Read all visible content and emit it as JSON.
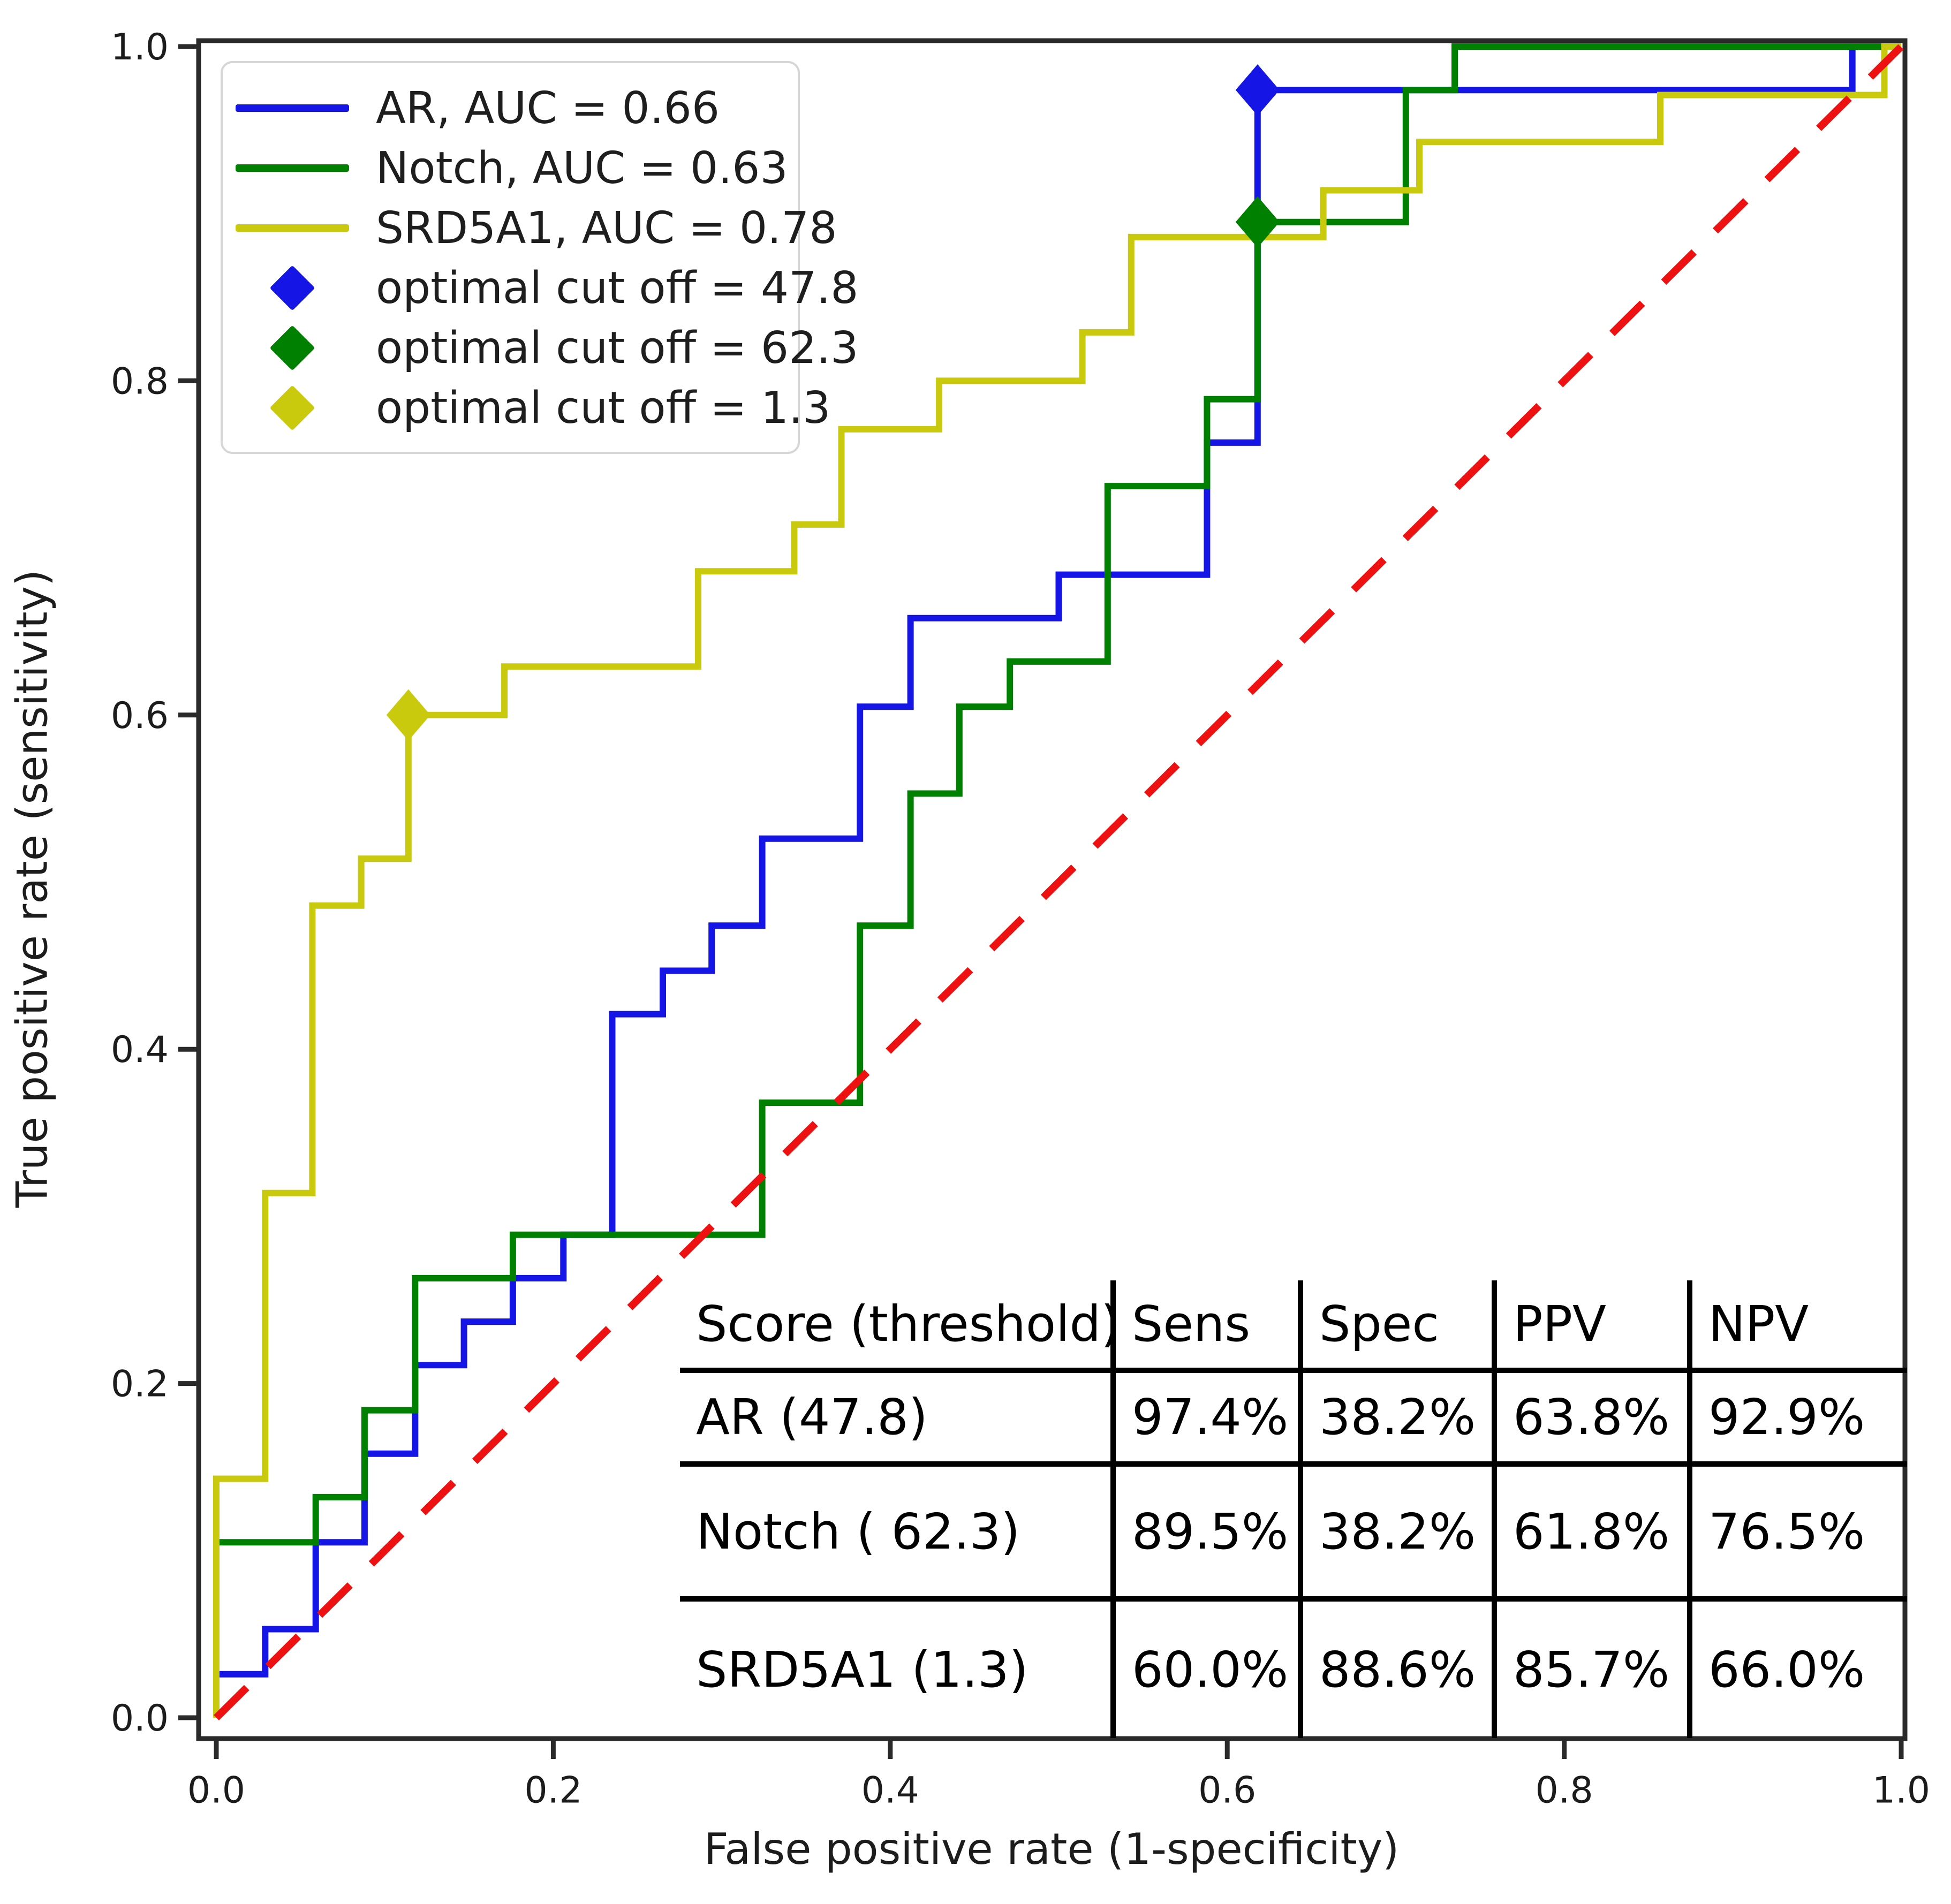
{
  "chart_data": {
    "type": "line",
    "subtype": "roc-step-curves",
    "title": "",
    "xlabel": "False positive rate (1-specificity)",
    "ylabel": "True positive rate (sensitivity)",
    "xlim": [
      0.0,
      1.0
    ],
    "ylim": [
      0.0,
      1.0
    ],
    "xticks": [
      "0.0",
      "0.2",
      "0.4",
      "0.6",
      "0.8",
      "1.0"
    ],
    "yticks": [
      "0.0",
      "0.2",
      "0.4",
      "0.6",
      "0.8",
      "1.0"
    ],
    "grid": false,
    "legend_position": "upper left",
    "frame_color": "#2a2a2a",
    "text_color": "#1c1c1c",
    "series": [
      {
        "id": "ar",
        "name": "AR",
        "auc": 0.66,
        "color": "#1515e6",
        "points": [
          [
            0,
            0
          ],
          [
            0,
            0.026
          ],
          [
            0.029,
            0.026
          ],
          [
            0.029,
            0.053
          ],
          [
            0.059,
            0.053
          ],
          [
            0.059,
            0.105
          ],
          [
            0.088,
            0.105
          ],
          [
            0.088,
            0.158
          ],
          [
            0.118,
            0.158
          ],
          [
            0.118,
            0.211
          ],
          [
            0.147,
            0.211
          ],
          [
            0.147,
            0.237
          ],
          [
            0.176,
            0.237
          ],
          [
            0.176,
            0.263
          ],
          [
            0.206,
            0.263
          ],
          [
            0.206,
            0.289
          ],
          [
            0.235,
            0.289
          ],
          [
            0.235,
            0.421
          ],
          [
            0.265,
            0.421
          ],
          [
            0.265,
            0.447
          ],
          [
            0.294,
            0.447
          ],
          [
            0.294,
            0.474
          ],
          [
            0.324,
            0.474
          ],
          [
            0.324,
            0.526
          ],
          [
            0.382,
            0.526
          ],
          [
            0.382,
            0.605
          ],
          [
            0.412,
            0.605
          ],
          [
            0.412,
            0.658
          ],
          [
            0.5,
            0.658
          ],
          [
            0.5,
            0.684
          ],
          [
            0.588,
            0.684
          ],
          [
            0.588,
            0.763
          ],
          [
            0.618,
            0.763
          ],
          [
            0.618,
            0.974
          ],
          [
            0.971,
            0.974
          ],
          [
            0.971,
            1
          ],
          [
            1,
            1
          ]
        ]
      },
      {
        "id": "notch",
        "name": "Notch",
        "auc": 0.63,
        "color": "#008000",
        "points": [
          [
            0,
            0
          ],
          [
            0,
            0.105
          ],
          [
            0.059,
            0.105
          ],
          [
            0.059,
            0.132
          ],
          [
            0.088,
            0.132
          ],
          [
            0.088,
            0.184
          ],
          [
            0.118,
            0.184
          ],
          [
            0.118,
            0.263
          ],
          [
            0.176,
            0.263
          ],
          [
            0.176,
            0.289
          ],
          [
            0.235,
            0.289
          ],
          [
            0.324,
            0.289
          ],
          [
            0.324,
            0.368
          ],
          [
            0.382,
            0.368
          ],
          [
            0.382,
            0.474
          ],
          [
            0.412,
            0.474
          ],
          [
            0.412,
            0.553
          ],
          [
            0.441,
            0.553
          ],
          [
            0.441,
            0.605
          ],
          [
            0.471,
            0.605
          ],
          [
            0.471,
            0.632
          ],
          [
            0.529,
            0.632
          ],
          [
            0.529,
            0.737
          ],
          [
            0.588,
            0.737
          ],
          [
            0.588,
            0.789
          ],
          [
            0.618,
            0.789
          ],
          [
            0.618,
            0.895
          ],
          [
            0.706,
            0.895
          ],
          [
            0.706,
            0.974
          ],
          [
            0.735,
            0.974
          ],
          [
            0.735,
            1
          ],
          [
            1,
            1
          ]
        ]
      },
      {
        "id": "srd5a1",
        "name": "SRD5A1",
        "auc": 0.78,
        "color": "#c9c90e",
        "points": [
          [
            0,
            0
          ],
          [
            0,
            0.143
          ],
          [
            0.029,
            0.143
          ],
          [
            0.029,
            0.314
          ],
          [
            0.057,
            0.314
          ],
          [
            0.057,
            0.486
          ],
          [
            0.086,
            0.486
          ],
          [
            0.086,
            0.514
          ],
          [
            0.114,
            0.514
          ],
          [
            0.114,
            0.6
          ],
          [
            0.171,
            0.6
          ],
          [
            0.171,
            0.629
          ],
          [
            0.286,
            0.629
          ],
          [
            0.286,
            0.686
          ],
          [
            0.343,
            0.686
          ],
          [
            0.343,
            0.714
          ],
          [
            0.371,
            0.714
          ],
          [
            0.371,
            0.771
          ],
          [
            0.429,
            0.771
          ],
          [
            0.429,
            0.8
          ],
          [
            0.514,
            0.8
          ],
          [
            0.514,
            0.829
          ],
          [
            0.543,
            0.829
          ],
          [
            0.543,
            0.886
          ],
          [
            0.657,
            0.886
          ],
          [
            0.657,
            0.914
          ],
          [
            0.714,
            0.914
          ],
          [
            0.714,
            0.943
          ],
          [
            0.857,
            0.943
          ],
          [
            0.857,
            0.971
          ],
          [
            0.99,
            0.971
          ],
          [
            0.99,
            1
          ],
          [
            1,
            1
          ]
        ]
      }
    ],
    "reference_line": {
      "id": "chance",
      "color": "#ee1111",
      "style": "dashed",
      "points": [
        [
          0,
          0
        ],
        [
          1,
          1
        ]
      ]
    },
    "markers": [
      {
        "id": "ar-cutoff",
        "label": "optimal cut off = 47.8",
        "color": "#1515e6",
        "x": 0.618,
        "y": 0.974
      },
      {
        "id": "notch-cutoff",
        "label": "optimal cut off = 62.3",
        "color": "#008000",
        "x": 0.618,
        "y": 0.895
      },
      {
        "id": "srd5a1-cutoff",
        "label": "optimal cut off = 1.3",
        "color": "#c9c90e",
        "x": 0.114,
        "y": 0.6
      }
    ]
  },
  "legend": {
    "items": [
      {
        "id": "ar",
        "type": "line",
        "color": "#1515e6",
        "label": "AR, AUC = 0.66"
      },
      {
        "id": "notch",
        "type": "line",
        "color": "#008000",
        "label": "Notch, AUC = 0.63"
      },
      {
        "id": "srd5a1",
        "type": "line",
        "color": "#c9c90e",
        "label": "SRD5A1, AUC = 0.78"
      },
      {
        "id": "ar-cutoff",
        "type": "diamond",
        "color": "#1515e6",
        "label": "optimal cut off = 47.8"
      },
      {
        "id": "notch-cutoff",
        "type": "diamond",
        "color": "#008000",
        "label": "optimal cut off = 62.3"
      },
      {
        "id": "srd5a1-cutoff",
        "type": "diamond",
        "color": "#c9c90e",
        "label": "optimal cut off = 1.3"
      }
    ]
  },
  "table": {
    "headers": [
      "Score (threshold)",
      "Sens",
      "Spec",
      "PPV",
      "NPV"
    ],
    "rows": [
      [
        "AR (47.8)",
        "97.4%",
        "38.2%",
        "63.8%",
        "92.9%"
      ],
      [
        "Notch ( 62.3)",
        "89.5%",
        "38.2%",
        "61.8%",
        "76.5%"
      ],
      [
        "SRD5A1 (1.3)",
        "60.0%",
        "88.6%",
        "85.7%",
        "66.0%"
      ]
    ]
  }
}
